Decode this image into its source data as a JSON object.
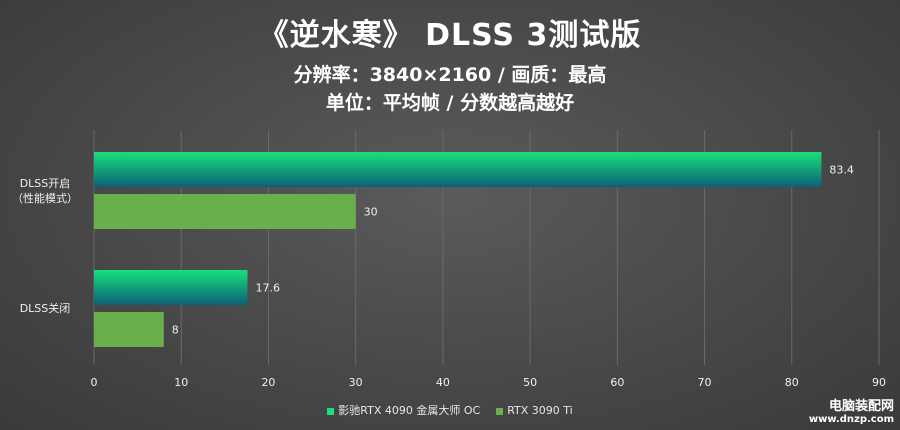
{
  "title": "《逆水寒》 DLSS 3测试版",
  "subtitle1": "分辨率：3840×2160 / 画质：最高",
  "subtitle2": "单位：平均帧 / 分数越高越好",
  "colors": {
    "series1_top": "#19e07a",
    "series1_bottom": "#0d5f78",
    "series2": "#6ab04a",
    "grid": "#6a6a6a",
    "text": "#f0f0f0"
  },
  "chart_data": {
    "type": "bar",
    "orientation": "horizontal",
    "categories": [
      [
        "DLSS开启",
        "（性能模式）"
      ],
      [
        "DLSS关闭"
      ]
    ],
    "series": [
      {
        "name": "影驰RTX 4090 金属大师 OC",
        "values": [
          83.4,
          17.6
        ]
      },
      {
        "name": "RTX 3090 Ti",
        "values": [
          30,
          8
        ]
      }
    ],
    "xlim": [
      0,
      90
    ],
    "xticks": [
      0,
      10,
      20,
      30,
      40,
      50,
      60,
      70,
      80,
      90
    ],
    "grid": true,
    "legend": "bottom"
  },
  "watermark": {
    "line1": "电脑装配网",
    "line2": "www.dnzp.com"
  }
}
